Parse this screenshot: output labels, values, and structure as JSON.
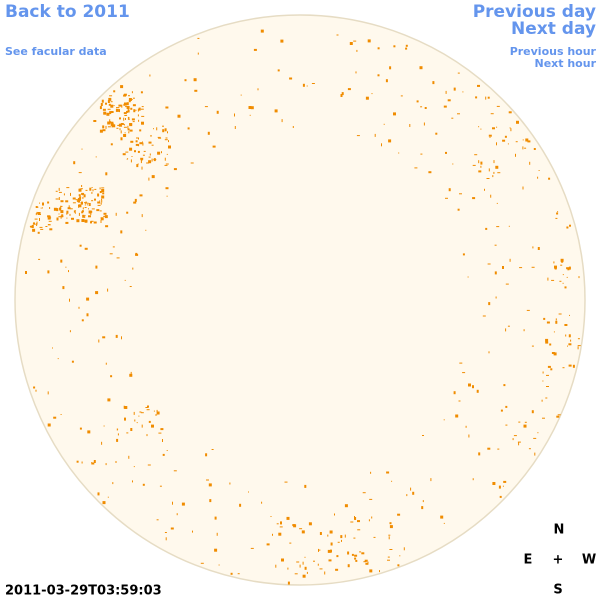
{
  "nav": {
    "back": "Back to 2011",
    "facular_data": "See facular data",
    "previous_day": "Previous day",
    "next_day": "Next day",
    "previous_hour": "Previous hour",
    "next_hour": "Next hour"
  },
  "timestamp": "2011-03-29T03:59:03",
  "compass": {
    "north": "N",
    "east": "E",
    "center": "+",
    "west": "W",
    "south": "S"
  }
}
